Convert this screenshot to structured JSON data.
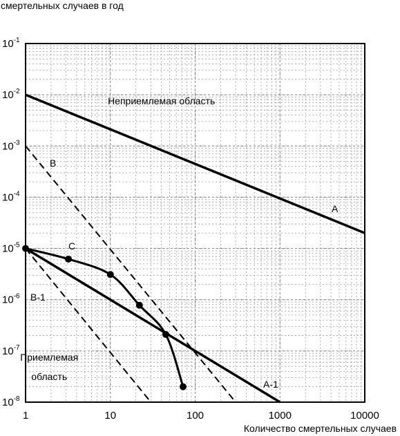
{
  "chart_data": {
    "type": "line",
    "ylabel": "смертельных случаев в год",
    "xlabel": "Количество смертельных случаев",
    "x_scale": "log",
    "y_scale": "log",
    "xlim": [
      1,
      10000
    ],
    "ylim": [
      1e-08,
      0.1
    ],
    "x_ticks": [
      {
        "value": 1,
        "label": "1"
      },
      {
        "value": 10,
        "label": "10"
      },
      {
        "value": 100,
        "label": "100"
      },
      {
        "value": 1000,
        "label": "1000"
      },
      {
        "value": 10000,
        "label": "10000"
      }
    ],
    "y_ticks": [
      {
        "value": 1e-08,
        "base": "10",
        "exp": "-8"
      },
      {
        "value": 1e-07,
        "base": "10",
        "exp": "-7"
      },
      {
        "value": 1e-06,
        "base": "10",
        "exp": "-6"
      },
      {
        "value": 1e-05,
        "base": "10",
        "exp": "-5"
      },
      {
        "value": 0.0001,
        "base": "10",
        "exp": "-4"
      },
      {
        "value": 0.001,
        "base": "10",
        "exp": "-3"
      },
      {
        "value": 0.01,
        "base": "10",
        "exp": "-2"
      },
      {
        "value": 0.1,
        "base": "10",
        "exp": "-1"
      }
    ],
    "grid": true,
    "series": [
      {
        "name": "A",
        "style": "solid",
        "x": [
          1,
          10000
        ],
        "y": [
          0.01,
          2e-05
        ]
      },
      {
        "name": "B",
        "style": "dashed",
        "x": [
          1,
          300
        ],
        "y": [
          0.001,
          1e-08
        ]
      },
      {
        "name": "A-1",
        "style": "solid",
        "x": [
          1,
          1000
        ],
        "y": [
          1e-05,
          1e-08
        ]
      },
      {
        "name": "B-1",
        "style": "dashed",
        "x": [
          1,
          30
        ],
        "y": [
          1e-05,
          1e-08
        ]
      },
      {
        "name": "C",
        "style": "solid",
        "markers": true,
        "x": [
          1,
          3.2,
          10,
          22,
          45,
          72
        ],
        "y": [
          1e-05,
          6.2e-06,
          3.1e-06,
          7.8e-07,
          2.1e-07,
          2e-08
        ]
      }
    ],
    "annotations": [
      {
        "text": "Неприемлемая область",
        "x": 40,
        "y": 0.0065
      },
      {
        "text": "Приемлемая",
        "x": 1.9,
        "y": 6.4e-08
      },
      {
        "text": "область",
        "x": 1.9,
        "y": 2.7e-08
      }
    ]
  }
}
